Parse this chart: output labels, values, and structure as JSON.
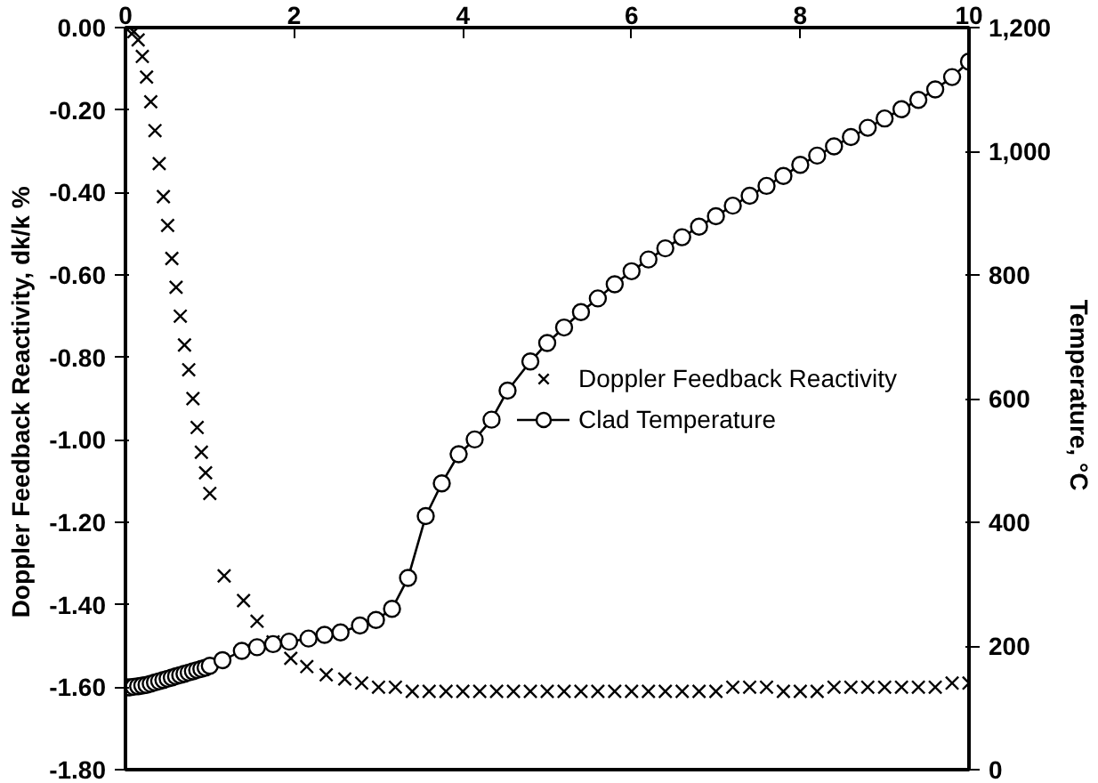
{
  "chart_data": {
    "type": "scatter",
    "ylabel": "Doppler Feedback Reactivity,  dk/k %",
    "y2label": "Temperature,  °C",
    "xlim": [
      0,
      10
    ],
    "xticks": [
      0,
      2,
      4,
      6,
      8,
      10
    ],
    "ylim": [
      -1.8,
      0
    ],
    "yticks": [
      {
        "value": 0,
        "label": "0.00"
      },
      {
        "value": -0.2,
        "label": "-0.20"
      },
      {
        "value": -0.4,
        "label": "-0.40"
      },
      {
        "value": -0.6,
        "label": "-0.60"
      },
      {
        "value": -0.8,
        "label": "-0.80"
      },
      {
        "value": -1.0,
        "label": "-1.00"
      },
      {
        "value": -1.2,
        "label": "-1.20"
      },
      {
        "value": -1.4,
        "label": "-1.40"
      },
      {
        "value": -1.6,
        "label": "-1.60"
      },
      {
        "value": -1.8,
        "label": "-1.80"
      }
    ],
    "y2lim": [
      0,
      1200
    ],
    "y2ticks": [
      0,
      200,
      400,
      600,
      800,
      {
        "value": 1000,
        "label": "1,000"
      },
      {
        "value": 1200,
        "label": "1,200"
      }
    ],
    "grid": false,
    "legend": "right",
    "series": [
      {
        "name": "Doppler Feedback Reactivity",
        "marker": "cross",
        "color": "#000000",
        "x": [
          0,
          0.05,
          0.1,
          0.15,
          0.2,
          0.25,
          0.3,
          0.35,
          0.4,
          0.45,
          0.5,
          0.55,
          0.6,
          0.65,
          0.7,
          0.75,
          0.8,
          0.85,
          0.9,
          0.95,
          1.0,
          1.17,
          1.4,
          1.56,
          1.75,
          1.96,
          2.15,
          2.38,
          2.6,
          2.8,
          3.0,
          3.2,
          3.4,
          3.6,
          3.8,
          4.0,
          4.2,
          4.4,
          4.6,
          4.8,
          5.0,
          5.2,
          5.4,
          5.6,
          5.8,
          6.0,
          6.2,
          6.4,
          6.6,
          6.8,
          7.0,
          7.2,
          7.4,
          7.6,
          7.8,
          8.0,
          8.2,
          8.4,
          8.6,
          8.8,
          9.0,
          9.2,
          9.4,
          9.6,
          9.8,
          10.0
        ],
        "values": [
          0,
          0,
          -0.01,
          -0.03,
          -0.07,
          -0.12,
          -0.18,
          -0.25,
          -0.33,
          -0.41,
          -0.48,
          -0.56,
          -0.63,
          -0.7,
          -0.77,
          -0.83,
          -0.9,
          -0.97,
          -1.03,
          -1.08,
          -1.13,
          -1.33,
          -1.39,
          -1.44,
          -1.49,
          -1.53,
          -1.55,
          -1.57,
          -1.58,
          -1.59,
          -1.6,
          -1.6,
          -1.61,
          -1.61,
          -1.61,
          -1.61,
          -1.61,
          -1.61,
          -1.61,
          -1.61,
          -1.61,
          -1.61,
          -1.61,
          -1.61,
          -1.61,
          -1.61,
          -1.61,
          -1.61,
          -1.61,
          -1.61,
          -1.61,
          -1.6,
          -1.6,
          -1.6,
          -1.61,
          -1.61,
          -1.61,
          -1.6,
          -1.6,
          -1.6,
          -1.6,
          -1.6,
          -1.6,
          -1.6,
          -1.59,
          -1.59
        ]
      },
      {
        "name": "Clad Temperature",
        "type": "line",
        "marker": "circle",
        "axis": "y2",
        "color": "#000000",
        "x": [
          0,
          0.05,
          0.1,
          0.15,
          0.2,
          0.25,
          0.3,
          0.35,
          0.4,
          0.45,
          0.5,
          0.55,
          0.6,
          0.65,
          0.7,
          0.75,
          0.8,
          0.85,
          0.9,
          0.95,
          1.0,
          1.15,
          1.38,
          1.56,
          1.75,
          1.94,
          2.17,
          2.36,
          2.55,
          2.78,
          2.97,
          3.16,
          3.35,
          3.56,
          3.75,
          3.95,
          4.14,
          4.34,
          4.53,
          4.8,
          5.0,
          5.2,
          5.4,
          5.6,
          5.8,
          6.0,
          6.2,
          6.4,
          6.6,
          6.8,
          7.0,
          7.2,
          7.4,
          7.6,
          7.8,
          8.0,
          8.2,
          8.4,
          8.6,
          8.8,
          9.0,
          9.2,
          9.4,
          9.6,
          9.8,
          10.0
        ],
        "values": [
          133,
          133,
          134,
          135,
          136,
          137,
          139,
          141,
          143,
          145,
          147,
          149,
          151,
          153,
          155,
          157,
          159,
          161,
          163,
          165,
          168,
          177,
          192,
          198,
          203,
          207,
          212,
          218,
          222,
          233,
          242,
          260,
          310,
          410,
          463,
          510,
          534,
          566,
          613,
          660,
          690,
          715,
          740,
          762,
          785,
          806,
          825,
          843,
          861,
          878,
          895,
          912,
          928,
          944,
          960,
          978,
          993,
          1008,
          1023,
          1038,
          1053,
          1068,
          1083,
          1100,
          1120,
          1145
        ]
      }
    ]
  }
}
